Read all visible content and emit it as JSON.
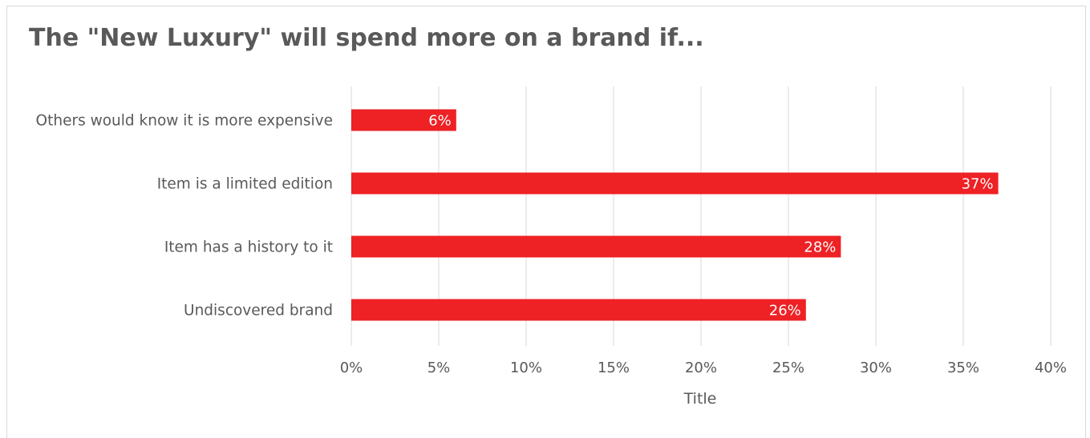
{
  "chart_data": {
    "type": "bar",
    "orientation": "horizontal",
    "title": "The \"New Luxury\" will spend more on a brand if...",
    "xlabel": "Title",
    "ylabel": "",
    "categories": [
      "Others would know it is more expensive",
      "Item is a limited edition",
      "Item has a history to it",
      "Undiscovered brand"
    ],
    "values": [
      0.06,
      0.37,
      0.28,
      0.26
    ],
    "data_labels": [
      "6%",
      "37%",
      "28%",
      "26%"
    ],
    "xlim": [
      0,
      0.4
    ],
    "x_ticks": [
      0,
      0.05,
      0.1,
      0.15,
      0.2,
      0.25,
      0.3,
      0.35,
      0.4
    ],
    "x_tick_labels": [
      "0%",
      "5%",
      "10%",
      "15%",
      "20%",
      "25%",
      "30%",
      "35%",
      "40%"
    ],
    "grid": "vertical",
    "legend": "none",
    "bar_color": "#ee2124",
    "grid_color": "#d9d9d9",
    "text_color": "#595959"
  }
}
